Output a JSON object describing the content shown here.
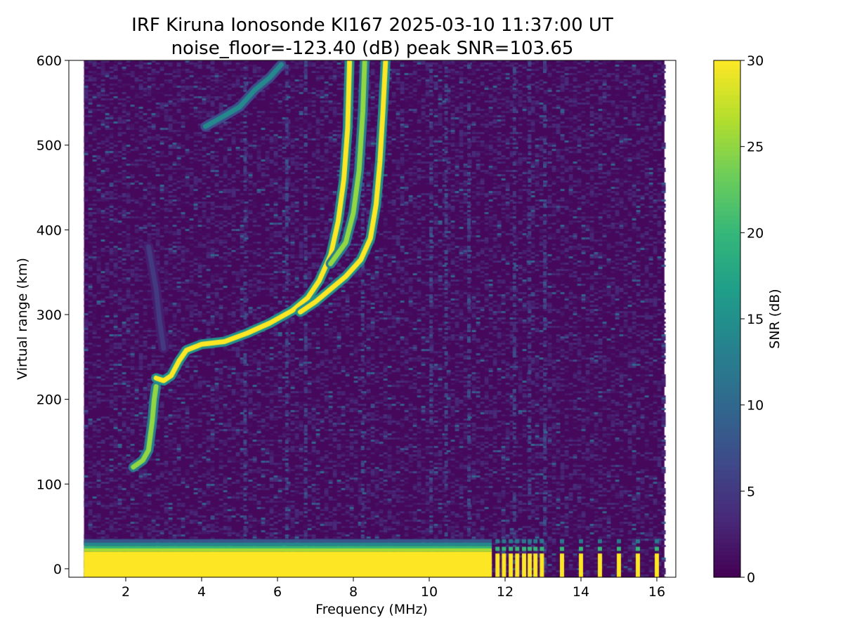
{
  "chart_data": {
    "type": "heatmap",
    "title_line1": "IRF Kiruna Ionosonde KI167 2025-03-10 11:37:00  UT",
    "title_line2": "noise_floor=-123.40 (dB) peak SNR=103.65",
    "xlabel": "Frequency (MHz)",
    "ylabel": "Virtual range (km)",
    "colorbar_label": "SNR (dB)",
    "colormap": "viridis",
    "xlim": [
      0.5,
      16.5
    ],
    "ylim": [
      -10,
      600
    ],
    "clim": [
      0,
      30
    ],
    "x_ticks": [
      2,
      4,
      6,
      8,
      10,
      12,
      14,
      16
    ],
    "y_ticks": [
      0,
      100,
      200,
      300,
      400,
      500,
      600
    ],
    "colorbar_ticks": [
      0,
      5,
      10,
      15,
      20,
      25,
      30
    ],
    "data_frequency_range_mhz": [
      0.9,
      16.2
    ],
    "traces": [
      {
        "name_hint": "E-layer echo",
        "points_mhz_km": [
          [
            2.2,
            120
          ],
          [
            2.45,
            128
          ],
          [
            2.6,
            140
          ],
          [
            2.7,
            175
          ],
          [
            2.75,
            200
          ],
          [
            2.8,
            215
          ]
        ],
        "snr": 25
      },
      {
        "name_hint": "F-layer O-trace",
        "points_mhz_km": [
          [
            2.8,
            225
          ],
          [
            3.0,
            222
          ],
          [
            3.2,
            228
          ],
          [
            3.4,
            245
          ],
          [
            3.6,
            258
          ],
          [
            4.0,
            265
          ],
          [
            4.6,
            268
          ],
          [
            5.2,
            278
          ],
          [
            5.8,
            290
          ],
          [
            6.4,
            305
          ],
          [
            6.8,
            320
          ],
          [
            7.1,
            340
          ],
          [
            7.4,
            370
          ],
          [
            7.6,
            410
          ],
          [
            7.75,
            460
          ],
          [
            7.85,
            520
          ],
          [
            7.9,
            600
          ]
        ],
        "snr": 30
      },
      {
        "name_hint": "F-layer X-trace",
        "points_mhz_km": [
          [
            6.6,
            303
          ],
          [
            7.0,
            315
          ],
          [
            7.4,
            330
          ],
          [
            7.8,
            345
          ],
          [
            8.2,
            365
          ],
          [
            8.45,
            390
          ],
          [
            8.6,
            430
          ],
          [
            8.7,
            480
          ],
          [
            8.78,
            540
          ],
          [
            8.85,
            600
          ]
        ],
        "snr": 30
      },
      {
        "name_hint": "secondary cusp",
        "points_mhz_km": [
          [
            7.4,
            360
          ],
          [
            7.8,
            385
          ],
          [
            8.0,
            420
          ],
          [
            8.15,
            470
          ],
          [
            8.25,
            540
          ],
          [
            8.3,
            600
          ]
        ],
        "snr": 25
      },
      {
        "name_hint": "multi-hop echo",
        "points_mhz_km": [
          [
            4.1,
            522
          ],
          [
            4.5,
            532
          ],
          [
            5.0,
            545
          ],
          [
            5.4,
            565
          ],
          [
            5.8,
            580
          ],
          [
            6.1,
            595
          ]
        ],
        "snr": 14
      },
      {
        "name_hint": "faint spread",
        "points_mhz_km": [
          [
            2.6,
            380
          ],
          [
            2.8,
            330
          ],
          [
            2.9,
            290
          ],
          [
            3.0,
            260
          ]
        ],
        "snr": 5
      }
    ],
    "ground_clutter": {
      "range_km": [
        -10,
        35
      ],
      "snr": 30,
      "continuous_to_mhz": 11.65
    },
    "discrete_channels_mhz": [
      11.8,
      11.97,
      12.15,
      12.32,
      12.5,
      12.65,
      12.8,
      12.97,
      13.5,
      14.0,
      14.5,
      15.0,
      15.5,
      16.0
    ]
  }
}
